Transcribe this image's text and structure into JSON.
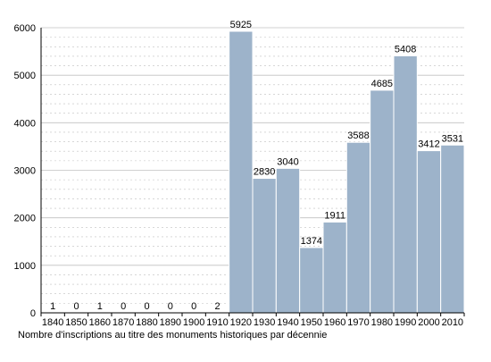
{
  "chart_data": {
    "type": "bar",
    "title": "",
    "xlabel": "Nombre d'inscriptions au titre des monuments historiques par décennie",
    "ylabel": "",
    "categories": [
      "1840",
      "1850",
      "1860",
      "1870",
      "1880",
      "1890",
      "1900",
      "1910",
      "1920",
      "1930",
      "1940",
      "1950",
      "1960",
      "1970",
      "1980",
      "1990",
      "2000",
      "2010"
    ],
    "values": [
      1,
      0,
      1,
      0,
      0,
      0,
      0,
      2,
      5925,
      2830,
      3040,
      1374,
      1911,
      3588,
      4685,
      5408,
      3412,
      3531
    ],
    "ylim": [
      0,
      6000
    ],
    "yticks": [
      0,
      1000,
      2000,
      3000,
      4000,
      5000,
      6000
    ],
    "grid": true,
    "bar_color": "#9db3ca",
    "grid_color": "#c0c0c0"
  }
}
